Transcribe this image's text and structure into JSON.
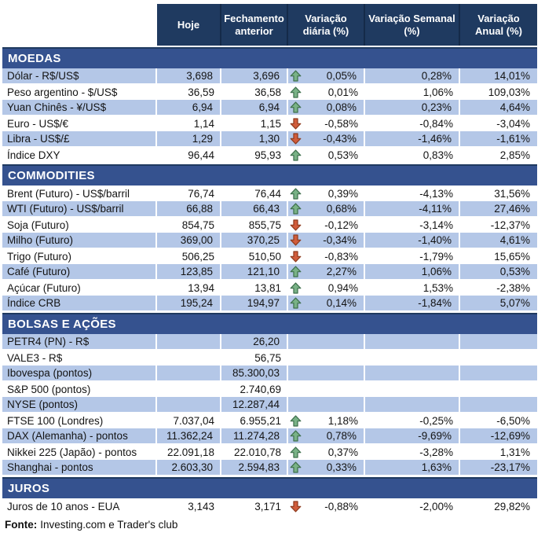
{
  "header": {
    "columns": [
      "",
      "Hoje",
      "Fechamento anterior",
      "Variação diária (%)",
      "Variação Semanal (%)",
      "Variação Anual (%)"
    ]
  },
  "sections": [
    {
      "title": "MOEDAS",
      "zebra_first_shaded": true,
      "rows": [
        {
          "label": "Dólar - R$/US$",
          "hoje": "3,698",
          "prev": "3,696",
          "trend": "up",
          "daily": "0,05%",
          "weekly": "0,28%",
          "annual": "14,01%"
        },
        {
          "label": "Peso argentino - $/US$",
          "hoje": "36,59",
          "prev": "36,58",
          "trend": "up",
          "daily": "0,01%",
          "weekly": "1,06%",
          "annual": "109,03%"
        },
        {
          "label": "Yuan Chinês - ¥/US$",
          "hoje": "6,94",
          "prev": "6,94",
          "trend": "up",
          "daily": "0,08%",
          "weekly": "0,23%",
          "annual": "4,64%"
        },
        {
          "label": "Euro - US$/€",
          "hoje": "1,14",
          "prev": "1,15",
          "trend": "down",
          "daily": "-0,58%",
          "weekly": "-0,84%",
          "annual": "-3,04%"
        },
        {
          "label": "Libra - US$/£",
          "hoje": "1,29",
          "prev": "1,30",
          "trend": "down",
          "daily": "-0,43%",
          "weekly": "-1,46%",
          "annual": "-1,61%"
        },
        {
          "label": "Índice DXY",
          "hoje": "96,44",
          "prev": "95,93",
          "trend": "up",
          "daily": "0,53%",
          "weekly": "0,83%",
          "annual": "2,85%"
        }
      ]
    },
    {
      "title": "COMMODITIES",
      "zebra_first_shaded": false,
      "rows": [
        {
          "label": "Brent (Futuro) - US$/barril",
          "hoje": "76,74",
          "prev": "76,44",
          "trend": "up",
          "daily": "0,39%",
          "weekly": "-4,13%",
          "annual": "31,56%"
        },
        {
          "label": "WTI (Futuro) - US$/barril",
          "hoje": "66,88",
          "prev": "66,43",
          "trend": "up",
          "daily": "0,68%",
          "weekly": "-4,11%",
          "annual": "27,46%"
        },
        {
          "label": "Soja (Futuro)",
          "hoje": "854,75",
          "prev": "855,75",
          "trend": "down",
          "daily": "-0,12%",
          "weekly": "-3,14%",
          "annual": "-12,37%"
        },
        {
          "label": "Milho (Futuro)",
          "hoje": "369,00",
          "prev": "370,25",
          "trend": "down",
          "daily": "-0,34%",
          "weekly": "-1,40%",
          "annual": "4,61%"
        },
        {
          "label": "Trigo (Futuro)",
          "hoje": "506,25",
          "prev": "510,50",
          "trend": "down",
          "daily": "-0,83%",
          "weekly": "-1,79%",
          "annual": "15,65%"
        },
        {
          "label": "Café (Futuro)",
          "hoje": "123,85",
          "prev": "121,10",
          "trend": "up",
          "daily": "2,27%",
          "weekly": "1,06%",
          "annual": "0,53%"
        },
        {
          "label": "Açúcar (Futuro)",
          "hoje": "13,94",
          "prev": "13,81",
          "trend": "up",
          "daily": "0,94%",
          "weekly": "1,53%",
          "annual": "-2,38%"
        },
        {
          "label": "Índice CRB",
          "hoje": "195,24",
          "prev": "194,97",
          "trend": "up",
          "daily": "0,14%",
          "weekly": "-1,84%",
          "annual": "5,07%"
        }
      ]
    },
    {
      "title": "BOLSAS E AÇÕES",
      "zebra_first_shaded": true,
      "rows": [
        {
          "label": "PETR4 (PN) - R$",
          "hoje": "",
          "prev": "26,20",
          "trend": null,
          "daily": "",
          "weekly": "",
          "annual": ""
        },
        {
          "label": "VALE3 - R$",
          "hoje": "",
          "prev": "56,75",
          "trend": null,
          "daily": "",
          "weekly": "",
          "annual": ""
        },
        {
          "label": "Ibovespa (pontos)",
          "hoje": "",
          "prev": "85.300,03",
          "trend": null,
          "daily": "",
          "weekly": "",
          "annual": ""
        },
        {
          "label": "S&P 500 (pontos)",
          "hoje": "",
          "prev": "2.740,69",
          "trend": null,
          "daily": "",
          "weekly": "",
          "annual": ""
        },
        {
          "label": "NYSE (pontos)",
          "hoje": "",
          "prev": "12.287,44",
          "trend": null,
          "daily": "",
          "weekly": "",
          "annual": ""
        },
        {
          "label": "FTSE 100 (Londres)",
          "hoje": "7.037,04",
          "prev": "6.955,21",
          "trend": "up",
          "daily": "1,18%",
          "weekly": "-0,25%",
          "annual": "-6,50%"
        },
        {
          "label": "DAX (Alemanha) - pontos",
          "hoje": "11.362,24",
          "prev": "11.274,28",
          "trend": "up",
          "daily": "0,78%",
          "weekly": "-9,69%",
          "annual": "-12,69%"
        },
        {
          "label": "Nikkei 225 (Japão) - pontos",
          "hoje": "22.091,18",
          "prev": "22.010,78",
          "trend": "up",
          "daily": "0,37%",
          "weekly": "-3,28%",
          "annual": "1,31%"
        },
        {
          "label": "Shanghai - pontos",
          "hoje": "2.603,30",
          "prev": "2.594,83",
          "trend": "up",
          "daily": "0,33%",
          "weekly": "1,63%",
          "annual": "-23,17%"
        }
      ]
    },
    {
      "title": "JUROS",
      "zebra_first_shaded": false,
      "rows": [
        {
          "label": "Juros de 10 anos - EUA",
          "hoje": "3,143",
          "prev": "3,171",
          "trend": "down",
          "daily": "-0,88%",
          "weekly": "-2,00%",
          "annual": "29,82%"
        }
      ]
    }
  ],
  "footer": {
    "label": "Fonte:",
    "text": "Investing.com e Trader's club"
  },
  "colors": {
    "header_bg": "#1F3A60",
    "band_bg": "#35528F",
    "row_alt_bg": "#B4C7E7",
    "up_arrow_fill": "#79B286",
    "up_arrow_stroke": "#3E6F4C",
    "down_arrow_fill": "#D15C3B",
    "down_arrow_stroke": "#8E3B1E"
  },
  "icons": {
    "up": "up-arrow-icon",
    "down": "down-arrow-icon"
  }
}
